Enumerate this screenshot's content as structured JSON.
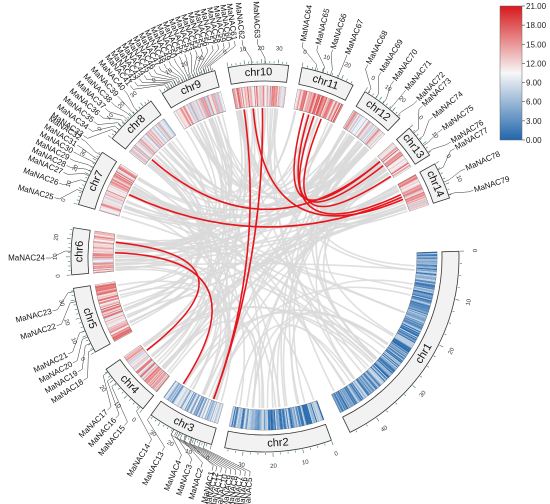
{
  "colors": {
    "link_highlight": "#e8141b",
    "link_background": "#d9d9d9",
    "chromosome_fill": "#f2f2f2",
    "chromosome_stroke": "#333333",
    "tick": "#2f7d5b",
    "scale_low": "#2166ac",
    "scale_mid": "#f7f7f7",
    "scale_high": "#d7191c"
  },
  "legend": {
    "ticks": [
      "21.00",
      "18.00",
      "15.00",
      "12.00",
      "9.00",
      "6.00",
      "3.00",
      "0.00"
    ]
  },
  "chromosomes": [
    {
      "name": "chr1",
      "ticks": [
        "0",
        "10",
        "20",
        "30",
        "40"
      ]
    },
    {
      "name": "chr2",
      "ticks": [
        "0",
        "10",
        "20",
        "30"
      ]
    },
    {
      "name": "chr3",
      "ticks": [
        "0",
        "10",
        "20",
        "30"
      ]
    },
    {
      "name": "chr4",
      "ticks": [
        "0",
        "10",
        "20"
      ]
    },
    {
      "name": "chr5",
      "ticks": [
        "0",
        "10",
        "20",
        "30"
      ]
    },
    {
      "name": "chr6",
      "ticks": [
        "0",
        "10",
        "20"
      ]
    },
    {
      "name": "chr7",
      "ticks": [
        "0",
        "10",
        "20",
        "30"
      ]
    },
    {
      "name": "chr8",
      "ticks": [
        "0",
        "10",
        "20",
        "30"
      ]
    },
    {
      "name": "chr9",
      "ticks": [
        "0",
        "10",
        "20",
        "30"
      ]
    },
    {
      "name": "chr10",
      "ticks": [
        "0",
        "10",
        "20",
        "30"
      ]
    },
    {
      "name": "chr11",
      "ticks": [
        "0",
        "10",
        "20"
      ]
    },
    {
      "name": "chr12",
      "ticks": [
        "0",
        "10",
        "20"
      ]
    },
    {
      "name": "chr13",
      "ticks": [
        "0",
        "10"
      ]
    },
    {
      "name": "chr14",
      "ticks": [
        "0",
        "10"
      ]
    }
  ],
  "genes": [
    {
      "label": "MaNAC1"
    },
    {
      "label": "MaNAC2"
    },
    {
      "label": "MaNAC3"
    },
    {
      "label": "MaNAC4"
    },
    {
      "label": "MaNAC5"
    },
    {
      "label": "MaNAC6"
    },
    {
      "label": "MaNAC7"
    },
    {
      "label": "MaNAC8"
    },
    {
      "label": "MaNAC9"
    },
    {
      "label": "MaNAC10"
    },
    {
      "label": "MaNAC11"
    },
    {
      "label": "MaNAC12"
    },
    {
      "label": "MaNAC13"
    },
    {
      "label": "MaNAC14"
    },
    {
      "label": "MaNAC15"
    },
    {
      "label": "MaNAC16"
    },
    {
      "label": "MaNAC17"
    },
    {
      "label": "MaNAC18"
    },
    {
      "label": "MaNAC19"
    },
    {
      "label": "MaNAC20"
    },
    {
      "label": "MaNAC21"
    },
    {
      "label": "MaNAC22"
    },
    {
      "label": "MaNAC23"
    },
    {
      "label": "MaNAC24"
    },
    {
      "label": "MaNAC25"
    },
    {
      "label": "MaNAC26"
    },
    {
      "label": "MaNAC27"
    },
    {
      "label": "MaNAC28"
    },
    {
      "label": "MaNAC29"
    },
    {
      "label": "MaNAC30"
    },
    {
      "label": "MaNAC31"
    },
    {
      "label": "MaNAC32"
    },
    {
      "label": "MaNAC33"
    },
    {
      "label": "MaNAC34"
    },
    {
      "label": "MaNAC35"
    },
    {
      "label": "MaNAC36"
    },
    {
      "label": "MaNAC37"
    },
    {
      "label": "MaNAC38"
    },
    {
      "label": "MaNAC39"
    },
    {
      "label": "MaNAC40"
    },
    {
      "label": "MaNAC41"
    },
    {
      "label": "MaNAC42"
    },
    {
      "label": "MaNAC43"
    },
    {
      "label": "MaNAC44"
    },
    {
      "label": "MaNAC45"
    },
    {
      "label": "MaNAC46"
    },
    {
      "label": "MaNAC47"
    },
    {
      "label": "MaNAC48"
    },
    {
      "label": "MaNAC49"
    },
    {
      "label": "MaNAC50"
    },
    {
      "label": "MaNAC51"
    },
    {
      "label": "MaNAC52"
    },
    {
      "label": "MaNAC53"
    },
    {
      "label": "MaNAC54"
    },
    {
      "label": "MaNAC55"
    },
    {
      "label": "MaNAC56"
    },
    {
      "label": "MaNAC57"
    },
    {
      "label": "MaNAC58"
    },
    {
      "label": "MaNAC59"
    },
    {
      "label": "MaNAC60"
    },
    {
      "label": "MaNAC61"
    },
    {
      "label": "MaNAC62"
    },
    {
      "label": "MaNAC63"
    },
    {
      "label": "MaNAC64"
    },
    {
      "label": "MaNAC65"
    },
    {
      "label": "MaNAC66"
    },
    {
      "label": "MaNAC67"
    },
    {
      "label": "MaNAC68"
    },
    {
      "label": "MaNAC69"
    },
    {
      "label": "MaNAC70"
    },
    {
      "label": "MaNAC71"
    },
    {
      "label": "MaNAC72"
    },
    {
      "label": "MaNAC73"
    },
    {
      "label": "MaNAC74"
    },
    {
      "label": "MaNAC75"
    },
    {
      "label": "MaNAC76"
    },
    {
      "label": "MaNAC77"
    },
    {
      "label": "MaNAC78"
    },
    {
      "label": "MaNAC79"
    }
  ]
}
